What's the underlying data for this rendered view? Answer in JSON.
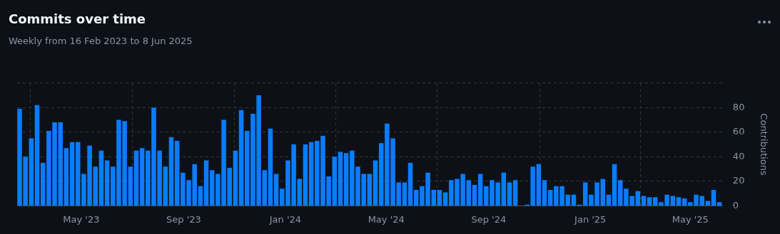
{
  "chart_data": {
    "type": "bar",
    "title": "Commits over time",
    "subtitle": "Weekly from 16 Feb 2023 to 8 Jun 2025",
    "ylabel": "Contributions",
    "x": [
      "2023-02-16",
      "2023-02-23",
      "2023-03-02",
      "2023-03-09",
      "2023-03-16",
      "2023-03-23",
      "2023-03-30",
      "2023-04-06",
      "2023-04-13",
      "2023-04-20",
      "2023-04-27",
      "2023-05-04",
      "2023-05-11",
      "2023-05-18",
      "2023-05-25",
      "2023-06-01",
      "2023-06-08",
      "2023-06-15",
      "2023-06-22",
      "2023-06-29",
      "2023-07-06",
      "2023-07-13",
      "2023-07-20",
      "2023-07-27",
      "2023-08-03",
      "2023-08-10",
      "2023-08-17",
      "2023-08-24",
      "2023-08-31",
      "2023-09-07",
      "2023-09-14",
      "2023-09-21",
      "2023-09-28",
      "2023-10-05",
      "2023-10-12",
      "2023-10-19",
      "2023-10-26",
      "2023-11-02",
      "2023-11-09",
      "2023-11-16",
      "2023-11-23",
      "2023-11-30",
      "2023-12-07",
      "2023-12-14",
      "2023-12-21",
      "2023-12-28",
      "2024-01-04",
      "2024-01-11",
      "2024-01-18",
      "2024-01-25",
      "2024-02-01",
      "2024-02-08",
      "2024-02-15",
      "2024-02-22",
      "2024-02-29",
      "2024-03-07",
      "2024-03-14",
      "2024-03-21",
      "2024-03-28",
      "2024-04-04",
      "2024-04-11",
      "2024-04-18",
      "2024-04-25",
      "2024-05-02",
      "2024-05-09",
      "2024-05-16",
      "2024-05-23",
      "2024-05-30",
      "2024-06-06",
      "2024-06-13",
      "2024-06-20",
      "2024-06-27",
      "2024-07-04",
      "2024-07-11",
      "2024-07-18",
      "2024-07-25",
      "2024-08-01",
      "2024-08-08",
      "2024-08-15",
      "2024-08-22",
      "2024-08-29",
      "2024-09-05",
      "2024-09-12",
      "2024-09-19",
      "2024-09-26",
      "2024-10-03",
      "2024-10-10",
      "2024-10-17",
      "2024-10-24",
      "2024-10-31",
      "2024-11-07",
      "2024-11-14",
      "2024-11-21",
      "2024-11-28",
      "2024-12-05",
      "2024-12-12",
      "2024-12-19",
      "2024-12-26",
      "2025-01-02",
      "2025-01-09",
      "2025-01-16",
      "2025-01-23",
      "2025-01-30",
      "2025-02-06",
      "2025-02-13",
      "2025-02-20",
      "2025-02-27",
      "2025-03-06",
      "2025-03-13",
      "2025-03-20",
      "2025-03-27",
      "2025-04-03",
      "2025-04-10",
      "2025-04-17",
      "2025-04-24",
      "2025-05-01",
      "2025-05-08",
      "2025-05-15",
      "2025-05-22",
      "2025-05-29",
      "2025-06-05"
    ],
    "values": [
      79,
      40,
      55,
      82,
      35,
      61,
      68,
      68,
      47,
      52,
      52,
      26,
      49,
      32,
      45,
      37,
      32,
      70,
      69,
      32,
      45,
      47,
      45,
      80,
      45,
      32,
      56,
      53,
      27,
      21,
      34,
      16,
      37,
      29,
      26,
      70,
      31,
      45,
      78,
      61,
      75,
      90,
      29,
      63,
      26,
      14,
      37,
      50,
      22,
      50,
      52,
      53,
      57,
      24,
      40,
      44,
      43,
      45,
      32,
      26,
      26,
      37,
      51,
      67,
      55,
      19,
      19,
      35,
      13,
      16,
      27,
      13,
      13,
      11,
      21,
      22,
      26,
      21,
      17,
      26,
      16,
      21,
      19,
      27,
      19,
      21,
      0,
      1,
      32,
      34,
      21,
      13,
      16,
      16,
      9,
      9,
      1,
      19,
      9,
      19,
      22,
      9,
      34,
      21,
      14,
      8,
      12,
      8,
      7,
      7,
      3,
      9,
      8,
      7,
      6,
      3,
      9,
      8,
      4,
      13,
      3
    ],
    "color": "#0a7cff",
    "xlim": [
      "2023-02-13",
      "2025-06-09"
    ],
    "xticks": [
      {
        "value": "2023-05-01",
        "label": "May '23"
      },
      {
        "value": "2023-09-01",
        "label": "Sep '23"
      },
      {
        "value": "2024-01-01",
        "label": "Jan '24"
      },
      {
        "value": "2024-05-01",
        "label": "May '24"
      },
      {
        "value": "2024-09-01",
        "label": "Sep '24"
      },
      {
        "value": "2025-01-01",
        "label": "Jan '25"
      },
      {
        "value": "2025-05-01",
        "label": "May '25"
      }
    ],
    "ylim": [
      0,
      100
    ],
    "yticks": [
      0,
      20,
      40,
      60,
      80,
      {
        "value": 100,
        "label": null
      }
    ],
    "grid": true,
    "legend": false
  }
}
